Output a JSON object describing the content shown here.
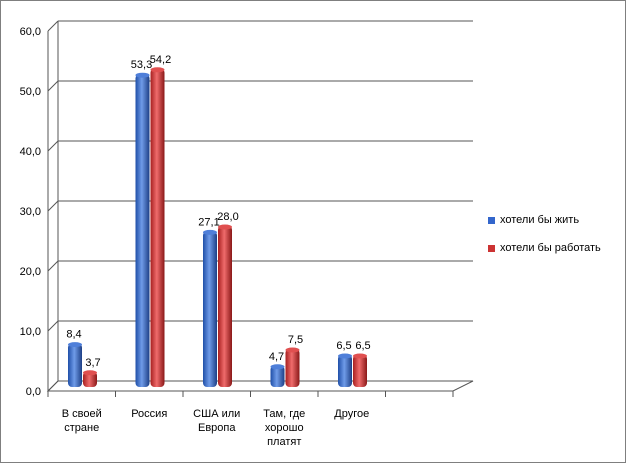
{
  "chart_data": {
    "type": "bar",
    "categories": [
      [
        "В своей",
        "стране"
      ],
      [
        "Россия"
      ],
      [
        "США или",
        "Европа"
      ],
      [
        "Там, где",
        "хорошо",
        "платят"
      ],
      [
        "Другое"
      ],
      [
        ""
      ]
    ],
    "series": [
      {
        "name": "хотели бы жить",
        "values": [
          8.4,
          53.3,
          27.1,
          4.7,
          6.5,
          null
        ],
        "labels": [
          "8,4",
          "53,3",
          "27,1",
          "4,7",
          "6,5",
          ""
        ],
        "color": "#3366cc"
      },
      {
        "name": "хотели бы работать",
        "values": [
          3.7,
          54.2,
          28.0,
          7.5,
          6.5,
          null
        ],
        "labels": [
          "3,7",
          "54,2",
          "28,0",
          "7,5",
          "6,5",
          ""
        ],
        "color": "#cc3333"
      }
    ],
    "yticks": [
      "0,0",
      "10,0",
      "20,0",
      "30,0",
      "40,0",
      "50,0",
      "60,0"
    ],
    "ylim": [
      0,
      60
    ],
    "grid": true,
    "legend_position": "right",
    "title": "",
    "xlabel": "",
    "ylabel": ""
  }
}
